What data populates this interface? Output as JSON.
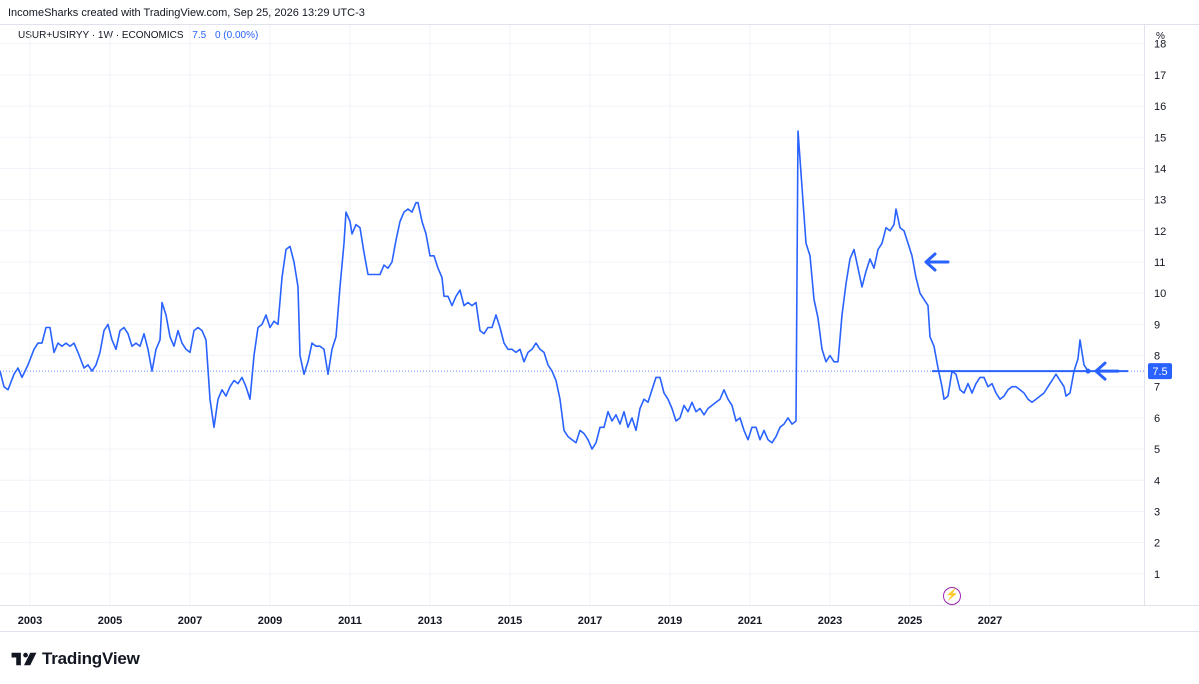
{
  "header": {
    "credit": "IncomeSharks created with TradingView.com, Sep 25, 2026 13:29 UTC-3"
  },
  "legend": {
    "symbol": "USUR+USIRYY · 1W · ECONOMICS",
    "value": "7.5",
    "change": "0 (0.00%)"
  },
  "axis": {
    "unit": "%",
    "price_label": "7.5"
  },
  "brand": {
    "name": "TradingView"
  },
  "colors": {
    "line": "#2962ff",
    "grid": "#f0f3fa",
    "axis_text": "#131722",
    "label_bg": "#2962ff",
    "flash": "#9c27b0"
  },
  "chart_data": {
    "type": "line",
    "title": "USUR+USIRYY · 1W · ECONOMICS",
    "xlabel": "",
    "ylabel": "%",
    "xlim": [
      2002.25,
      2030.85
    ],
    "ylim": [
      0.0,
      18.6
    ],
    "x_ticks": [
      2003,
      2005,
      2007,
      2009,
      2011,
      2013,
      2015,
      2017,
      2019,
      2021,
      2023,
      2025,
      2027
    ],
    "y_ticks": [
      1,
      2,
      3,
      4,
      5,
      6,
      7,
      8,
      9,
      10,
      11,
      12,
      13,
      14,
      15,
      16,
      17,
      18
    ],
    "grid": true,
    "series": [
      {
        "name": "USUR+USIRYY",
        "points": [
          [
            2002.25,
            7.5
          ],
          [
            2002.35,
            7.0
          ],
          [
            2002.45,
            6.9
          ],
          [
            2002.6,
            7.4
          ],
          [
            2002.7,
            7.6
          ],
          [
            2002.8,
            7.3
          ],
          [
            2002.95,
            7.7
          ],
          [
            2003.1,
            8.2
          ],
          [
            2003.2,
            8.4
          ],
          [
            2003.3,
            8.4
          ],
          [
            2003.4,
            8.9
          ],
          [
            2003.5,
            8.9
          ],
          [
            2003.6,
            8.1
          ],
          [
            2003.7,
            8.4
          ],
          [
            2003.8,
            8.3
          ],
          [
            2003.9,
            8.4
          ],
          [
            2004.0,
            8.3
          ],
          [
            2004.1,
            8.4
          ],
          [
            2004.2,
            8.1
          ],
          [
            2004.35,
            7.6
          ],
          [
            2004.45,
            7.7
          ],
          [
            2004.55,
            7.5
          ],
          [
            2004.65,
            7.7
          ],
          [
            2004.75,
            8.1
          ],
          [
            2004.85,
            8.8
          ],
          [
            2004.95,
            9.0
          ],
          [
            2005.05,
            8.5
          ],
          [
            2005.15,
            8.2
          ],
          [
            2005.25,
            8.8
          ],
          [
            2005.35,
            8.9
          ],
          [
            2005.45,
            8.7
          ],
          [
            2005.55,
            8.3
          ],
          [
            2005.65,
            8.4
          ],
          [
            2005.75,
            8.3
          ],
          [
            2005.85,
            8.7
          ],
          [
            2005.95,
            8.2
          ],
          [
            2006.05,
            7.5
          ],
          [
            2006.15,
            8.2
          ],
          [
            2006.25,
            8.5
          ],
          [
            2006.3,
            9.7
          ],
          [
            2006.4,
            9.3
          ],
          [
            2006.5,
            8.6
          ],
          [
            2006.6,
            8.3
          ],
          [
            2006.7,
            8.8
          ],
          [
            2006.8,
            8.4
          ],
          [
            2006.9,
            8.2
          ],
          [
            2007.0,
            8.1
          ],
          [
            2007.1,
            8.8
          ],
          [
            2007.2,
            8.9
          ],
          [
            2007.3,
            8.8
          ],
          [
            2007.4,
            8.5
          ],
          [
            2007.5,
            6.6
          ],
          [
            2007.6,
            5.7
          ],
          [
            2007.7,
            6.6
          ],
          [
            2007.8,
            6.9
          ],
          [
            2007.9,
            6.7
          ],
          [
            2008.0,
            7.0
          ],
          [
            2008.1,
            7.2
          ],
          [
            2008.2,
            7.1
          ],
          [
            2008.3,
            7.3
          ],
          [
            2008.4,
            7.0
          ],
          [
            2008.5,
            6.6
          ],
          [
            2008.6,
            8.0
          ],
          [
            2008.7,
            8.9
          ],
          [
            2008.8,
            9.0
          ],
          [
            2008.9,
            9.3
          ],
          [
            2009.0,
            8.9
          ],
          [
            2009.1,
            9.1
          ],
          [
            2009.2,
            9.0
          ],
          [
            2009.3,
            10.5
          ],
          [
            2009.4,
            11.4
          ],
          [
            2009.5,
            11.5
          ],
          [
            2009.6,
            11.0
          ],
          [
            2009.7,
            10.2
          ],
          [
            2009.75,
            8.0
          ],
          [
            2009.85,
            7.4
          ],
          [
            2009.95,
            7.8
          ],
          [
            2010.05,
            8.4
          ],
          [
            2010.15,
            8.3
          ],
          [
            2010.25,
            8.3
          ],
          [
            2010.35,
            8.2
          ],
          [
            2010.45,
            7.4
          ],
          [
            2010.55,
            8.2
          ],
          [
            2010.65,
            8.6
          ],
          [
            2010.75,
            10.2
          ],
          [
            2010.85,
            11.6
          ],
          [
            2010.9,
            12.6
          ],
          [
            2011.0,
            12.3
          ],
          [
            2011.05,
            11.9
          ],
          [
            2011.15,
            12.2
          ],
          [
            2011.25,
            12.1
          ],
          [
            2011.35,
            11.3
          ],
          [
            2011.45,
            10.6
          ],
          [
            2011.55,
            10.6
          ],
          [
            2011.65,
            10.6
          ],
          [
            2011.75,
            10.6
          ],
          [
            2011.85,
            10.9
          ],
          [
            2011.95,
            10.8
          ],
          [
            2012.05,
            11.0
          ],
          [
            2012.15,
            11.7
          ],
          [
            2012.25,
            12.3
          ],
          [
            2012.35,
            12.6
          ],
          [
            2012.45,
            12.7
          ],
          [
            2012.55,
            12.6
          ],
          [
            2012.65,
            12.9
          ],
          [
            2012.7,
            12.9
          ],
          [
            2012.8,
            12.3
          ],
          [
            2012.9,
            11.9
          ],
          [
            2013.0,
            11.2
          ],
          [
            2013.1,
            11.2
          ],
          [
            2013.2,
            10.8
          ],
          [
            2013.3,
            10.5
          ],
          [
            2013.35,
            9.9
          ],
          [
            2013.45,
            9.9
          ],
          [
            2013.55,
            9.6
          ],
          [
            2013.65,
            9.9
          ],
          [
            2013.75,
            10.1
          ],
          [
            2013.85,
            9.6
          ],
          [
            2013.95,
            9.7
          ],
          [
            2014.05,
            9.6
          ],
          [
            2014.15,
            9.7
          ],
          [
            2014.25,
            8.8
          ],
          [
            2014.35,
            8.7
          ],
          [
            2014.45,
            8.9
          ],
          [
            2014.55,
            8.9
          ],
          [
            2014.65,
            9.3
          ],
          [
            2014.75,
            8.9
          ],
          [
            2014.85,
            8.4
          ],
          [
            2014.95,
            8.2
          ],
          [
            2015.05,
            8.2
          ],
          [
            2015.15,
            8.1
          ],
          [
            2015.25,
            8.2
          ],
          [
            2015.35,
            7.8
          ],
          [
            2015.45,
            8.1
          ],
          [
            2015.55,
            8.2
          ],
          [
            2015.65,
            8.4
          ],
          [
            2015.75,
            8.2
          ],
          [
            2015.85,
            8.1
          ],
          [
            2015.95,
            7.7
          ],
          [
            2016.05,
            7.5
          ],
          [
            2016.15,
            7.2
          ],
          [
            2016.25,
            6.6
          ],
          [
            2016.35,
            5.6
          ],
          [
            2016.45,
            5.4
          ],
          [
            2016.55,
            5.3
          ],
          [
            2016.65,
            5.2
          ],
          [
            2016.75,
            5.6
          ],
          [
            2016.85,
            5.5
          ],
          [
            2016.95,
            5.3
          ],
          [
            2017.05,
            5.0
          ],
          [
            2017.15,
            5.2
          ],
          [
            2017.25,
            5.7
          ],
          [
            2017.35,
            5.7
          ],
          [
            2017.45,
            6.2
          ],
          [
            2017.55,
            5.9
          ],
          [
            2017.65,
            6.1
          ],
          [
            2017.75,
            5.8
          ],
          [
            2017.85,
            6.2
          ],
          [
            2017.95,
            5.7
          ],
          [
            2018.05,
            6.0
          ],
          [
            2018.15,
            5.6
          ],
          [
            2018.25,
            6.3
          ],
          [
            2018.35,
            6.6
          ],
          [
            2018.45,
            6.5
          ],
          [
            2018.55,
            6.9
          ],
          [
            2018.65,
            7.3
          ],
          [
            2018.75,
            7.3
          ],
          [
            2018.85,
            6.8
          ],
          [
            2018.95,
            6.6
          ],
          [
            2019.05,
            6.3
          ],
          [
            2019.15,
            5.9
          ],
          [
            2019.25,
            6.0
          ],
          [
            2019.35,
            6.4
          ],
          [
            2019.45,
            6.2
          ],
          [
            2019.55,
            6.5
          ],
          [
            2019.65,
            6.2
          ],
          [
            2019.75,
            6.3
          ],
          [
            2019.85,
            6.1
          ],
          [
            2019.95,
            6.3
          ],
          [
            2020.05,
            6.4
          ],
          [
            2020.15,
            6.5
          ],
          [
            2020.25,
            6.6
          ],
          [
            2020.35,
            6.9
          ],
          [
            2020.45,
            6.6
          ],
          [
            2020.55,
            6.4
          ],
          [
            2020.65,
            5.9
          ],
          [
            2020.75,
            6.0
          ],
          [
            2020.85,
            5.6
          ],
          [
            2020.95,
            5.3
          ],
          [
            2021.05,
            5.7
          ],
          [
            2021.15,
            5.7
          ],
          [
            2021.25,
            5.3
          ],
          [
            2021.35,
            5.6
          ],
          [
            2021.45,
            5.3
          ],
          [
            2021.55,
            5.2
          ],
          [
            2021.65,
            5.4
          ],
          [
            2021.75,
            5.7
          ],
          [
            2021.85,
            5.8
          ],
          [
            2021.95,
            6.0
          ],
          [
            2022.05,
            5.8
          ],
          [
            2022.15,
            5.9
          ],
          [
            2022.2,
            15.2
          ],
          [
            2022.3,
            13.4
          ],
          [
            2022.4,
            11.6
          ],
          [
            2022.5,
            11.2
          ],
          [
            2022.6,
            9.8
          ],
          [
            2022.7,
            9.2
          ],
          [
            2022.8,
            8.2
          ],
          [
            2022.9,
            7.8
          ],
          [
            2023.0,
            8.0
          ],
          [
            2023.1,
            7.8
          ],
          [
            2023.2,
            7.8
          ],
          [
            2023.3,
            9.3
          ],
          [
            2023.4,
            10.3
          ],
          [
            2023.5,
            11.1
          ],
          [
            2023.6,
            11.4
          ],
          [
            2023.7,
            10.8
          ],
          [
            2023.8,
            10.2
          ],
          [
            2023.9,
            10.7
          ],
          [
            2024.0,
            11.1
          ],
          [
            2024.1,
            10.8
          ],
          [
            2024.2,
            11.4
          ],
          [
            2024.3,
            11.6
          ],
          [
            2024.4,
            12.1
          ],
          [
            2024.5,
            12.0
          ],
          [
            2024.6,
            12.2
          ],
          [
            2024.65,
            12.7
          ],
          [
            2024.75,
            12.1
          ],
          [
            2024.85,
            12.0
          ],
          [
            2024.95,
            11.6
          ],
          [
            2025.05,
            11.2
          ],
          [
            2025.15,
            10.5
          ],
          [
            2025.25,
            10.0
          ],
          [
            2025.35,
            9.8
          ],
          [
            2025.45,
            9.6
          ],
          [
            2025.5,
            8.6
          ],
          [
            2025.6,
            8.3
          ],
          [
            2025.7,
            7.6
          ],
          [
            2025.8,
            7.0
          ],
          [
            2025.85,
            6.6
          ],
          [
            2025.95,
            6.7
          ],
          [
            2026.05,
            7.5
          ],
          [
            2026.15,
            7.4
          ],
          [
            2026.25,
            6.9
          ],
          [
            2026.35,
            6.8
          ],
          [
            2026.45,
            7.1
          ],
          [
            2026.55,
            6.8
          ],
          [
            2026.65,
            7.1
          ],
          [
            2026.75,
            7.3
          ],
          [
            2026.85,
            7.3
          ],
          [
            2026.95,
            7.0
          ],
          [
            2027.05,
            7.1
          ],
          [
            2027.15,
            6.8
          ],
          [
            2027.25,
            6.6
          ],
          [
            2027.35,
            6.7
          ],
          [
            2027.45,
            6.9
          ],
          [
            2027.55,
            7.0
          ],
          [
            2027.65,
            7.0
          ],
          [
            2027.75,
            6.9
          ],
          [
            2027.85,
            6.8
          ],
          [
            2027.95,
            6.6
          ],
          [
            2028.05,
            6.5
          ],
          [
            2028.15,
            6.6
          ],
          [
            2028.25,
            6.7
          ],
          [
            2028.35,
            6.8
          ],
          [
            2028.45,
            7.0
          ],
          [
            2028.55,
            7.2
          ],
          [
            2028.65,
            7.4
          ],
          [
            2028.75,
            7.2
          ],
          [
            2028.85,
            7.0
          ],
          [
            2028.9,
            6.7
          ],
          [
            2029.0,
            6.8
          ],
          [
            2029.1,
            7.5
          ],
          [
            2029.2,
            7.9
          ],
          [
            2029.25,
            8.5
          ],
          [
            2029.35,
            7.7
          ],
          [
            2029.45,
            7.5
          ]
        ]
      }
    ],
    "annotations": [
      {
        "type": "horizontal-ray",
        "y": 7.5,
        "x_start": 2025.55,
        "x_end": 2030.45
      },
      {
        "type": "arrow-left",
        "x": 2025.4,
        "y": 11.0
      },
      {
        "type": "arrow-left",
        "x": 2029.65,
        "y": 7.5
      }
    ],
    "last_value_line": 7.5
  }
}
